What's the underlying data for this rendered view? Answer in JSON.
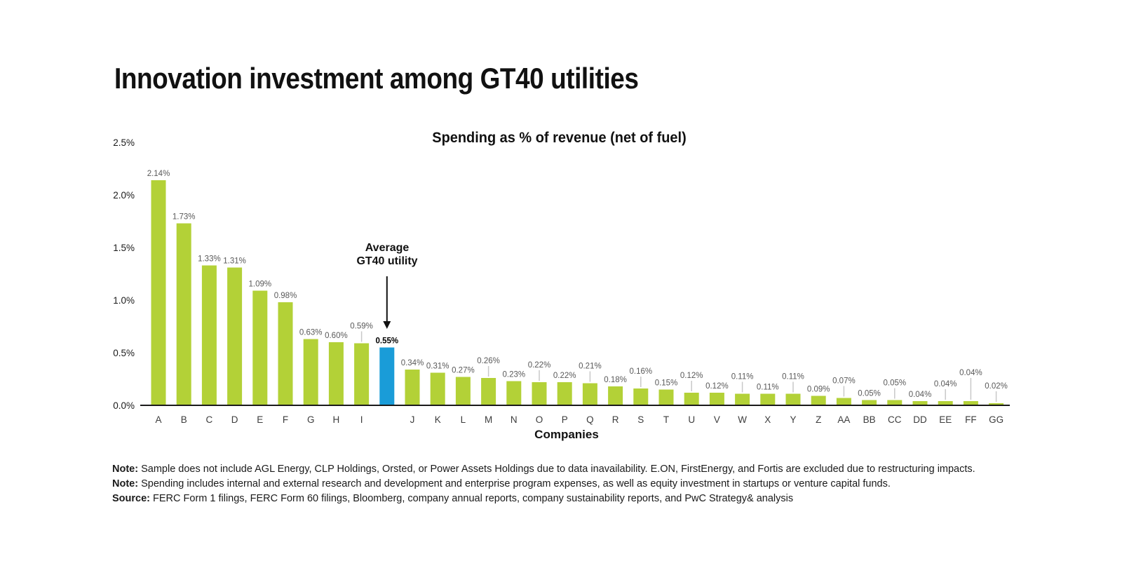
{
  "title": "Innovation investment among GT40 utilities",
  "chart": {
    "subtitle": "Spending as % of revenue (net of fuel)",
    "xlabel": "Companies"
  },
  "annotation": {
    "line1": "Average",
    "line2": "GT40 utility"
  },
  "colors": {
    "bar_green": "#B3D137",
    "bar_blue": "#1A9CD8",
    "leader_gray": "#C8C8C8",
    "axis_black": "#1A1A1A",
    "value_label_gray": "#595959",
    "value_label_bold": "#000000",
    "category_label": "#3D3D3D"
  },
  "chart_data": {
    "type": "bar",
    "title": "Spending as % of revenue (net of fuel)",
    "xlabel": "Companies",
    "ylabel": "",
    "ylim": [
      0,
      2.5
    ],
    "y_ticks": [
      "0.0%",
      "0.5%",
      "1.0%",
      "1.5%",
      "2.0%",
      "2.5%"
    ],
    "grid": false,
    "legend": "none",
    "highlight_note": "Blue bar is the Average GT40 utility at 0.55%; label level 1/2 = value label raised with gray leader line",
    "bars": [
      {
        "label": "A",
        "value": 2.14,
        "display": "2.14%",
        "level": 0,
        "highlight": false
      },
      {
        "label": "B",
        "value": 1.73,
        "display": "1.73%",
        "level": 0,
        "highlight": false
      },
      {
        "label": "C",
        "value": 1.33,
        "display": "1.33%",
        "level": 0,
        "highlight": false
      },
      {
        "label": "D",
        "value": 1.31,
        "display": "1.31%",
        "level": 0,
        "highlight": false
      },
      {
        "label": "E",
        "value": 1.09,
        "display": "1.09%",
        "level": 0,
        "highlight": false
      },
      {
        "label": "F",
        "value": 0.98,
        "display": "0.98%",
        "level": 0,
        "highlight": false
      },
      {
        "label": "G",
        "value": 0.63,
        "display": "0.63%",
        "level": 0,
        "highlight": false
      },
      {
        "label": "H",
        "value": 0.6,
        "display": "0.60%",
        "level": 0,
        "highlight": false
      },
      {
        "label": "I",
        "value": 0.59,
        "display": "0.59%",
        "level": 1,
        "highlight": false
      },
      {
        "label": "",
        "value": 0.55,
        "display": "0.55%",
        "level": 0,
        "highlight": true
      },
      {
        "label": "J",
        "value": 0.34,
        "display": "0.34%",
        "level": 0,
        "highlight": false
      },
      {
        "label": "K",
        "value": 0.31,
        "display": "0.31%",
        "level": 0,
        "highlight": false
      },
      {
        "label": "L",
        "value": 0.27,
        "display": "0.27%",
        "level": 0,
        "highlight": false
      },
      {
        "label": "M",
        "value": 0.26,
        "display": "0.26%",
        "level": 1,
        "highlight": false
      },
      {
        "label": "N",
        "value": 0.23,
        "display": "0.23%",
        "level": 0,
        "highlight": false
      },
      {
        "label": "O",
        "value": 0.22,
        "display": "0.22%",
        "level": 1,
        "highlight": false
      },
      {
        "label": "P",
        "value": 0.22,
        "display": "0.22%",
        "level": 0,
        "highlight": false
      },
      {
        "label": "Q",
        "value": 0.21,
        "display": "0.21%",
        "level": 1,
        "highlight": false
      },
      {
        "label": "R",
        "value": 0.18,
        "display": "0.18%",
        "level": 0,
        "highlight": false
      },
      {
        "label": "S",
        "value": 0.16,
        "display": "0.16%",
        "level": 1,
        "highlight": false
      },
      {
        "label": "T",
        "value": 0.15,
        "display": "0.15%",
        "level": 0,
        "highlight": false
      },
      {
        "label": "U",
        "value": 0.12,
        "display": "0.12%",
        "level": 1,
        "highlight": false
      },
      {
        "label": "V",
        "value": 0.12,
        "display": "0.12%",
        "level": 0,
        "highlight": false
      },
      {
        "label": "W",
        "value": 0.11,
        "display": "0.11%",
        "level": 1,
        "highlight": false
      },
      {
        "label": "X",
        "value": 0.11,
        "display": "0.11%",
        "level": 0,
        "highlight": false
      },
      {
        "label": "Y",
        "value": 0.11,
        "display": "0.11%",
        "level": 1,
        "highlight": false
      },
      {
        "label": "Z",
        "value": 0.09,
        "display": "0.09%",
        "level": 0,
        "highlight": false
      },
      {
        "label": "AA",
        "value": 0.07,
        "display": "0.07%",
        "level": 1,
        "highlight": false
      },
      {
        "label": "BB",
        "value": 0.05,
        "display": "0.05%",
        "level": 0,
        "highlight": false
      },
      {
        "label": "CC",
        "value": 0.05,
        "display": "0.05%",
        "level": 1,
        "highlight": false
      },
      {
        "label": "DD",
        "value": 0.04,
        "display": "0.04%",
        "level": 0,
        "highlight": false
      },
      {
        "label": "EE",
        "value": 0.04,
        "display": "0.04%",
        "level": 1,
        "highlight": false
      },
      {
        "label": "FF",
        "value": 0.04,
        "display": "0.04%",
        "level": 2,
        "highlight": false
      },
      {
        "label": "GG",
        "value": 0.02,
        "display": "0.02%",
        "level": 1,
        "highlight": false
      }
    ]
  },
  "footnotes": [
    {
      "prefix": "Note:",
      "text": " Sample does not include AGL Energy, CLP Holdings, Orsted, or Power Assets Holdings due to data inavailability. E.ON, FirstEnergy, and Fortis are excluded due to restructuring impacts."
    },
    {
      "prefix": "Note:",
      "text": " Spending includes internal and external research and development and enterprise program expenses, as well as equity investment in startups or venture capital funds."
    },
    {
      "prefix": "Source:",
      "text": " FERC Form 1 filings, FERC Form 60 filings, Bloomberg, company annual reports, company sustainability reports, and PwC Strategy& analysis"
    }
  ]
}
